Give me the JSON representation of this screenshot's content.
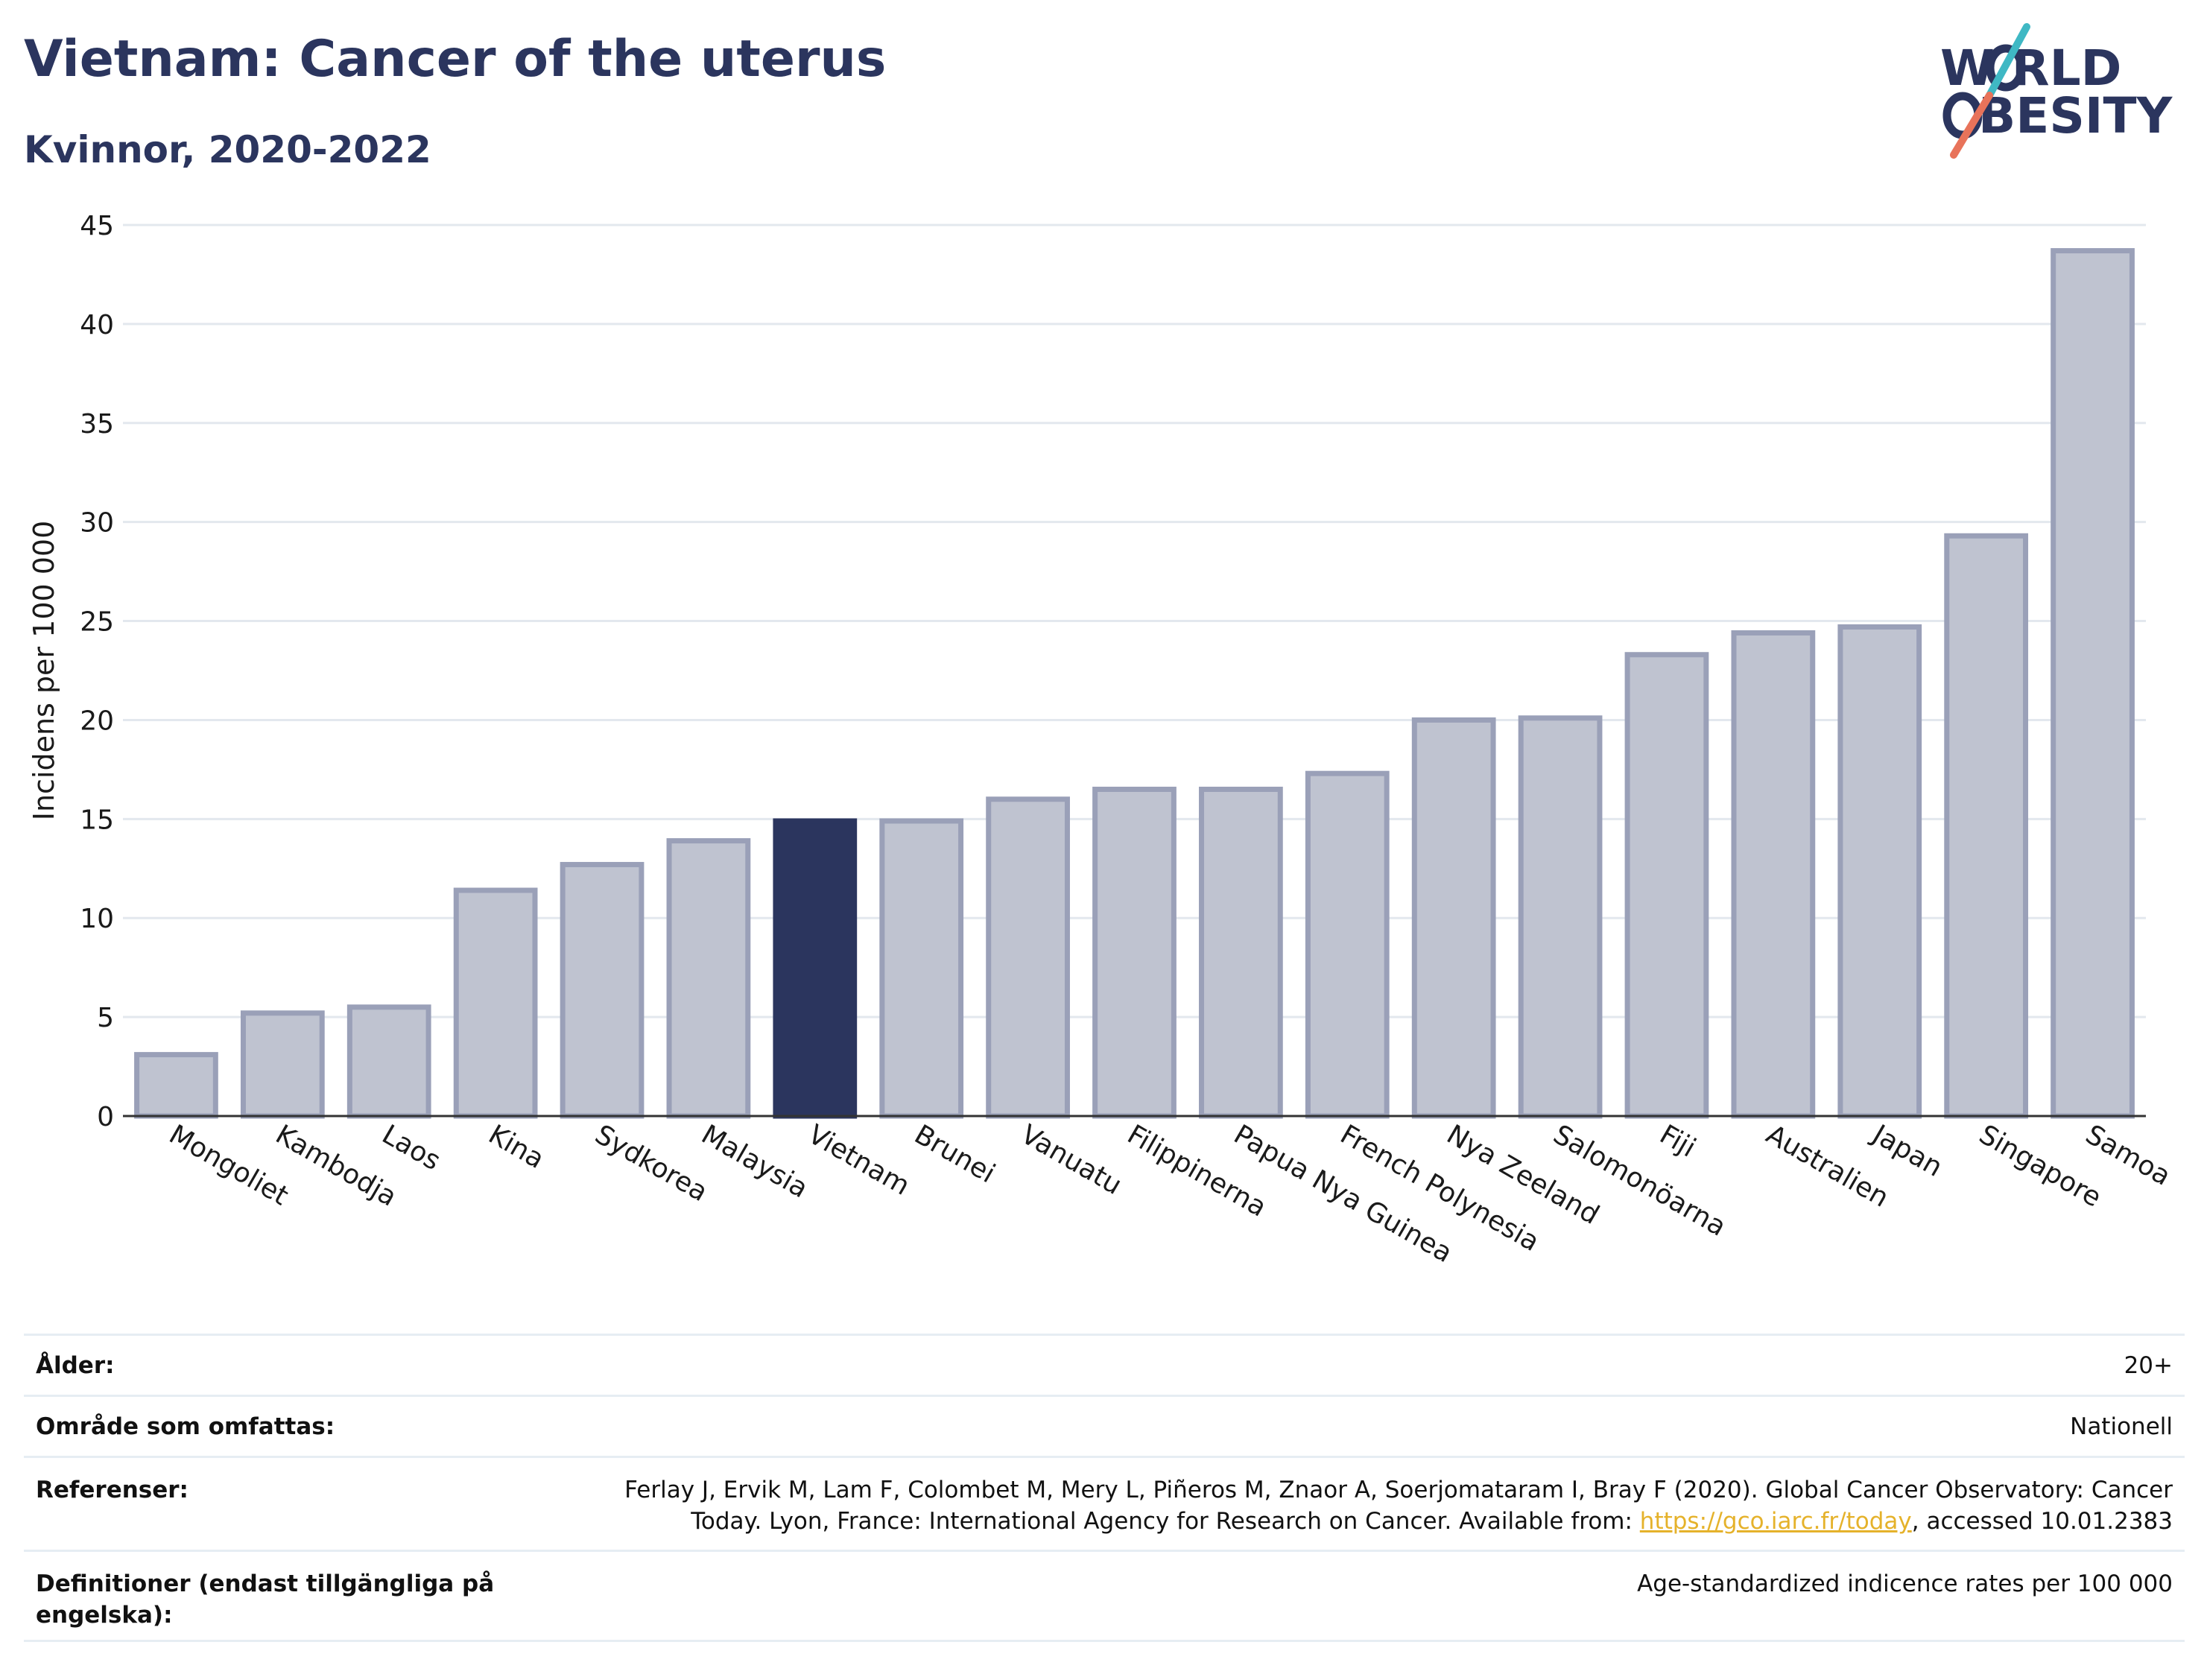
{
  "header": {
    "title": "Vietnam: Cancer of the uterus",
    "subtitle": "Kvinnor, 2020-2022"
  },
  "logo": {
    "line1": "W RLD",
    "line2": "BESITY",
    "text": "WORLD OBESITY",
    "colors": {
      "text": "#2b355e",
      "slash_top": "#3fb8c4",
      "slash_bottom": "#e8735a"
    }
  },
  "chart_data": {
    "type": "bar",
    "ylabel": "Incidens per 100 000",
    "ylim": [
      0,
      45
    ],
    "yticks": [
      0,
      5,
      10,
      15,
      20,
      25,
      30,
      35,
      40,
      45
    ],
    "grid": true,
    "categories": [
      "Mongoliet",
      "Kambodja",
      "Laos",
      "Kina",
      "Sydkorea",
      "Malaysia",
      "Vietnam",
      "Brunei",
      "Vanuatu",
      "Filippinerna",
      "Papua Nya Guinea",
      "French Polynesia",
      "Nya Zeeland",
      "Salomonöarna",
      "Fiji",
      "Australien",
      "Japan",
      "Singapore",
      "Samoa"
    ],
    "values": [
      3.1,
      5.2,
      5.5,
      11.4,
      12.7,
      13.9,
      14.9,
      14.9,
      16.0,
      16.5,
      16.5,
      17.3,
      20.0,
      20.1,
      23.3,
      24.4,
      24.7,
      29.3,
      43.7
    ],
    "highlight": "Vietnam",
    "colors": {
      "highlight": "#2b355e",
      "bar_fill": "#bfc3d0",
      "bar_stroke": "#9aa0b8"
    }
  },
  "info": {
    "rows": [
      {
        "label": "Ålder:",
        "value": "20+"
      },
      {
        "label": "Område som omfattas:",
        "value": "Nationell"
      },
      {
        "label": "Referenser:",
        "value_line1": "Ferlay J, Ervik M, Lam F, Colombet M, Mery L, Piñeros M, Znaor A, Soerjomataram I, Bray F (2020). Global Cancer Observatory: Cancer",
        "value_line2_pre": "Today. Lyon, France: International Agency for Research on Cancer. Available from: ",
        "link": "https://gco.iarc.fr/today",
        "value_line2_post": ", accessed 10.01.2383"
      },
      {
        "label_line1": "Definitioner (endast tillgängliga på",
        "label_line2": "engelska):",
        "value": "Age-standardized indicence rates per 100 000"
      }
    ]
  }
}
